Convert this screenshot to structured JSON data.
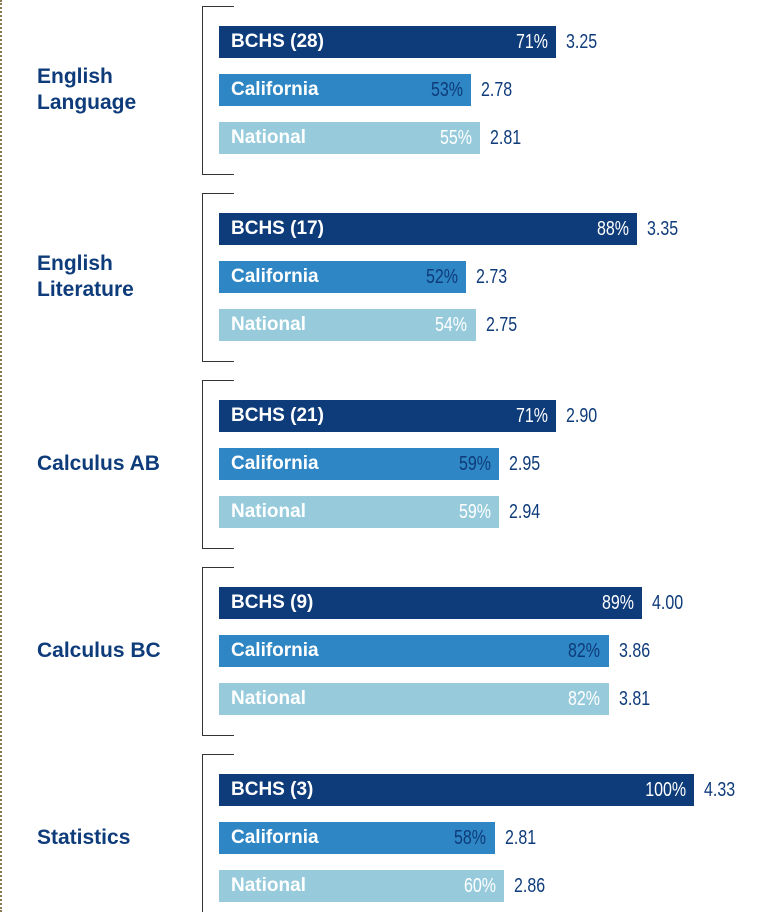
{
  "chart_data": {
    "type": "bar",
    "categories": [
      "English Language",
      "English Literature",
      "Calculus AB",
      "Calculus BC",
      "Statistics"
    ],
    "xlim": [
      0,
      100
    ],
    "series": [
      {
        "color": "#0e3b7a",
        "label_color": "#ffffff",
        "names": [
          "BCHS (28)",
          "BCHS (17)",
          "BCHS (21)",
          "BCHS (9)",
          "BCHS (3)"
        ],
        "values": [
          71,
          88,
          71,
          89,
          100
        ],
        "value_labels": [
          "71%",
          "88%",
          "71%",
          "89%",
          "100%"
        ],
        "scores": [
          "3.25",
          "3.35",
          "2.90",
          "4.00",
          "4.33"
        ]
      },
      {
        "color": "#2e86c4",
        "label_color": "#0e3b7a",
        "names": [
          "California",
          "California",
          "California",
          "California",
          "California"
        ],
        "values": [
          53,
          52,
          59,
          82,
          58
        ],
        "value_labels": [
          "53%",
          "52%",
          "59%",
          "82%",
          "58%"
        ],
        "scores": [
          "2.78",
          "2.73",
          "2.95",
          "3.86",
          "2.81"
        ]
      },
      {
        "color": "#97cbdc",
        "label_color": "#ffffff",
        "names": [
          "National",
          "National",
          "National",
          "National",
          "National"
        ],
        "values": [
          55,
          54,
          59,
          82,
          60
        ],
        "value_labels": [
          "55%",
          "54%",
          "59%",
          "82%",
          "60%"
        ],
        "scores": [
          "2.81",
          "2.75",
          "2.94",
          "3.81",
          "2.86"
        ]
      }
    ]
  }
}
